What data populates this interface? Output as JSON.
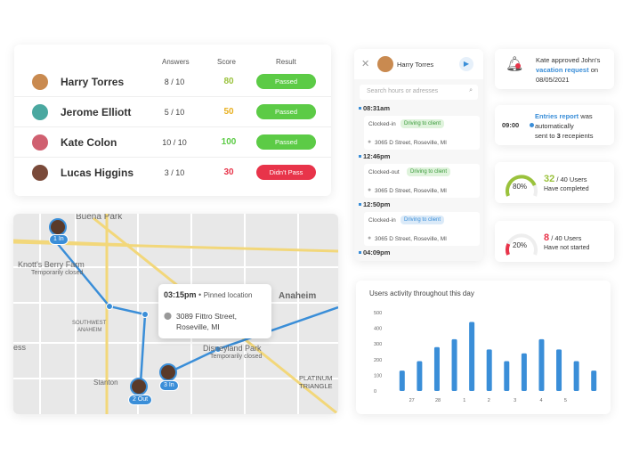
{
  "table": {
    "headers": [
      "Answers",
      "Score",
      "Result"
    ],
    "rows": [
      {
        "name": "Harry Torres",
        "answers": "8 / 10",
        "score": "80",
        "score_color": "#9ac23c",
        "result": "Passed",
        "result_color": "#5ccb46"
      },
      {
        "name": "Jerome Elliott",
        "answers": "5 / 10",
        "score": "50",
        "score_color": "#e8b020",
        "result": "Passed",
        "result_color": "#5ccb46"
      },
      {
        "name": "Kate Colon",
        "answers": "10 / 10",
        "score": "100",
        "score_color": "#5ccb46",
        "result": "Passed",
        "result_color": "#5ccb46"
      },
      {
        "name": "Lucas Higgins",
        "answers": "3 / 10",
        "score": "30",
        "score_color": "#e8344a",
        "result": "Didn't Pass",
        "result_color": "#e8344a"
      }
    ]
  },
  "timeline": {
    "user": "Harry Torres",
    "search_placeholder": "Search hours or adresses",
    "entries": [
      {
        "time": "08:31am",
        "action": "Clocked-in",
        "tag": "Driving to client",
        "tag_color": "green",
        "address": "3065  D Street, Roseville, MI"
      },
      {
        "time": "12:46pm",
        "action": "Clocked-out",
        "tag": "Driving to client",
        "tag_color": "green",
        "address": "3065  D Street, Roseville, MI"
      },
      {
        "time": "12:50pm",
        "action": "Clocked-in",
        "tag": "Driving to client",
        "tag_color": "blue",
        "address": "3065  D Street, Roseville, MI"
      }
    ],
    "last_time": "04:09pm"
  },
  "notifications": {
    "approval": {
      "pre": "Kate approved John's",
      "link": "vacation request",
      "post": " on",
      "date": "08/05/2021"
    },
    "report": {
      "time": "09:00",
      "link": "Entries report",
      "post": " was",
      "line2": "automatically",
      "line3a": "sent to ",
      "count": "3",
      "line3b": " recepients"
    },
    "completed": {
      "percent": "80%",
      "value": 80,
      "count": "32",
      "total": " / 40 Users",
      "label": "Have completed"
    },
    "not_started": {
      "percent": "20%",
      "value": 20,
      "count": "8",
      "total": " / 40 Users",
      "label": "Have not started"
    }
  },
  "map": {
    "labels": [
      "Buena Park",
      "Knott's Berry Farm",
      "Temporarily closed",
      "SOUTHWEST",
      "ANAHEIM",
      "Stanton",
      "Disneyland Park",
      "Temporarily closed",
      "Anaheim",
      "PLATINUM",
      "TRIANGLE",
      "ess"
    ],
    "markers": [
      "1 In",
      "2 Out",
      "3 In"
    ],
    "popup": {
      "time": "03:15pm",
      "sep": "•",
      "type": "Pinned location",
      "address1": "3089  Fittro Street,",
      "address2": "Roseville, MI"
    }
  },
  "chart_data": {
    "type": "bar",
    "title": "Users activity throughout this day",
    "ylim": [
      0,
      500
    ],
    "yticks": [
      0,
      100,
      200,
      300,
      400,
      500
    ],
    "values": [
      130,
      190,
      280,
      330,
      440,
      265,
      190,
      240,
      330,
      265,
      190,
      130
    ],
    "xtick_labels": [
      {
        "label": "27",
        "index": 0.5
      },
      {
        "label": "28",
        "index": 2
      },
      {
        "label": "1",
        "index": 3.6
      },
      {
        "label": "2",
        "index": 5
      },
      {
        "label": "3",
        "index": 6.5
      },
      {
        "label": "4",
        "index": 8
      },
      {
        "label": "5",
        "index": 9.4
      }
    ],
    "color": "#3a8ed8"
  }
}
